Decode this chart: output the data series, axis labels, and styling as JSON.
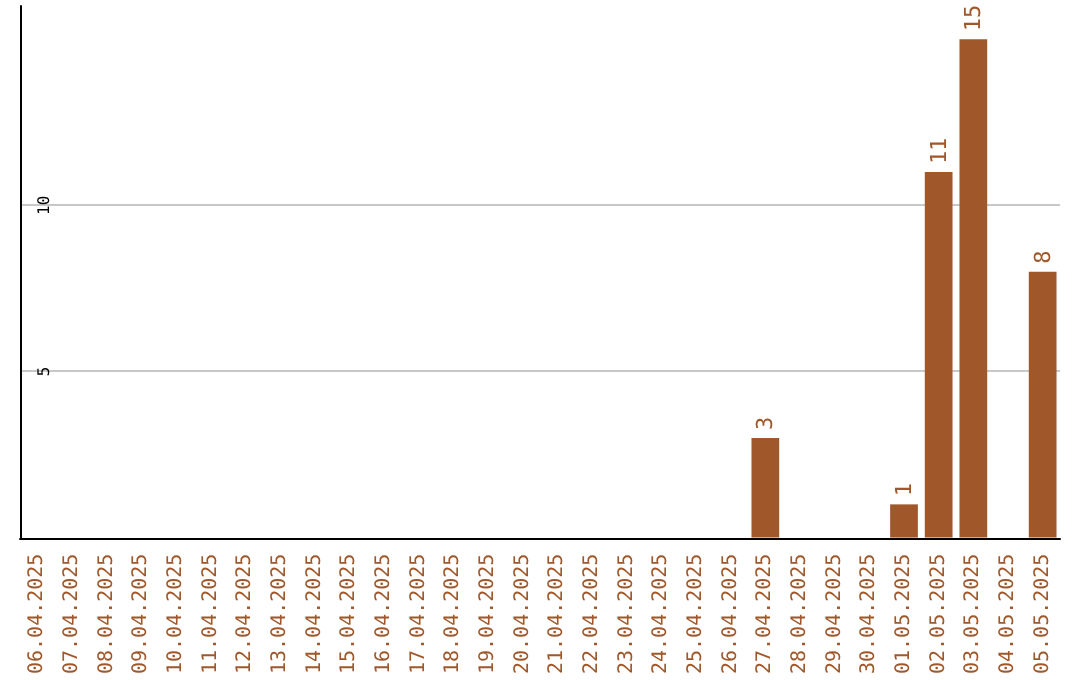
{
  "chart_data": {
    "type": "bar",
    "categories": [
      "06.04.2025",
      "07.04.2025",
      "08.04.2025",
      "09.04.2025",
      "10.04.2025",
      "11.04.2025",
      "12.04.2025",
      "13.04.2025",
      "14.04.2025",
      "15.04.2025",
      "16.04.2025",
      "17.04.2025",
      "18.04.2025",
      "19.04.2025",
      "20.04.2025",
      "21.04.2025",
      "22.04.2025",
      "23.04.2025",
      "24.04.2025",
      "25.04.2025",
      "26.04.2025",
      "27.04.2025",
      "28.04.2025",
      "29.04.2025",
      "30.04.2025",
      "01.05.2025",
      "02.05.2025",
      "03.05.2025",
      "04.05.2025",
      "05.05.2025"
    ],
    "values": [
      0,
      0,
      0,
      0,
      0,
      0,
      0,
      0,
      0,
      0,
      0,
      0,
      0,
      0,
      0,
      0,
      0,
      0,
      0,
      0,
      0,
      3,
      0,
      0,
      0,
      1,
      11,
      15,
      0,
      8
    ],
    "value_labels": [
      null,
      null,
      null,
      null,
      null,
      null,
      null,
      null,
      null,
      null,
      null,
      null,
      null,
      null,
      null,
      null,
      null,
      null,
      null,
      null,
      null,
      "3",
      null,
      null,
      null,
      "1",
      "11",
      "15",
      null,
      "8"
    ],
    "color": "#a0582b",
    "ylim": [
      0,
      16
    ],
    "yticks": [
      5,
      10
    ],
    "grid": "y"
  }
}
